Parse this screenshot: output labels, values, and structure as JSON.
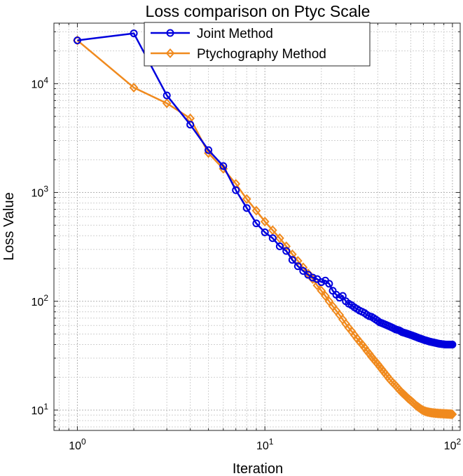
{
  "chart_data": {
    "type": "line",
    "title": "Loss comparison on Ptyc Scale",
    "xlabel": "Iteration",
    "ylabel": "Loss Value",
    "xscale": "log",
    "yscale": "log",
    "xlim": [
      0.75,
      110
    ],
    "ylim": [
      6.5,
      36000
    ],
    "grid": true,
    "minor_grid": true,
    "legend_position": "top-center",
    "x_ticks": [
      {
        "value": 1,
        "base": "10",
        "exp": "0"
      },
      {
        "value": 10,
        "base": "10",
        "exp": "1"
      },
      {
        "value": 100,
        "base": "10",
        "exp": "2"
      }
    ],
    "y_ticks": [
      {
        "value": 10,
        "base": "10",
        "exp": "1"
      },
      {
        "value": 100,
        "base": "10",
        "exp": "2"
      },
      {
        "value": 1000,
        "base": "10",
        "exp": "3"
      },
      {
        "value": 10000,
        "base": "10",
        "exp": "4"
      }
    ],
    "x": [
      1,
      2,
      3,
      4,
      5,
      6,
      7,
      8,
      9,
      10,
      11,
      12,
      13,
      14,
      15,
      16,
      17,
      18,
      19,
      20,
      21,
      22,
      23,
      24,
      25,
      26,
      27,
      28,
      29,
      30,
      31,
      32,
      33,
      34,
      35,
      36,
      37,
      38,
      39,
      40,
      41,
      42,
      43,
      44,
      45,
      46,
      47,
      48,
      49,
      50,
      51,
      52,
      53,
      54,
      55,
      56,
      57,
      58,
      59,
      60,
      61,
      62,
      63,
      64,
      65,
      66,
      67,
      68,
      69,
      70,
      71,
      72,
      73,
      74,
      75,
      76,
      77,
      78,
      79,
      80,
      81,
      82,
      83,
      84,
      85,
      86,
      87,
      88,
      89,
      90,
      91,
      92,
      93,
      94,
      95,
      96,
      97,
      98,
      99,
      100
    ],
    "series": [
      {
        "name": "Joint Method",
        "color": "#0000dd",
        "marker": "circle",
        "values": [
          25000,
          29000,
          7800,
          4200,
          2450,
          1750,
          1050,
          720,
          520,
          430,
          380,
          320,
          290,
          240,
          210,
          190,
          175,
          165,
          160,
          150,
          155,
          145,
          125,
          115,
          108,
          112,
          100,
          95,
          92,
          88,
          85,
          82,
          80,
          78,
          75,
          73,
          72,
          70,
          68,
          66,
          64,
          63,
          62,
          61,
          60,
          59,
          58,
          57,
          56,
          55,
          54.5,
          54,
          53,
          52,
          51.5,
          51,
          50.5,
          50,
          49.5,
          49,
          48.5,
          48,
          47.5,
          47,
          46.5,
          46,
          45.6,
          45.2,
          44.8,
          44.4,
          44,
          43.7,
          43.4,
          43.1,
          42.8,
          42.5,
          42.3,
          42.1,
          41.9,
          41.7,
          41.5,
          41.3,
          41.1,
          40.9,
          40.7,
          40.6,
          40.5,
          40.4,
          40.3,
          40.2,
          40.1,
          40.05,
          40,
          40,
          40,
          40,
          40,
          40,
          40,
          40
        ]
      },
      {
        "name": "Ptychography Method",
        "color": "#f08a1e",
        "marker": "diamond",
        "values": [
          25000,
          9200,
          6600,
          4800,
          2300,
          1650,
          1200,
          870,
          680,
          540,
          450,
          380,
          320,
          270,
          235,
          205,
          180,
          160,
          140,
          125,
          112,
          100,
          90,
          82,
          75,
          68,
          62,
          57,
          53,
          49,
          45.5,
          42.5,
          40,
          37.5,
          35,
          33,
          31,
          29.3,
          27.8,
          26.4,
          25,
          23.7,
          22.5,
          21.4,
          20.4,
          19.4,
          18.6,
          17.9,
          17.3,
          16.7,
          16,
          15.4,
          14.9,
          14.4,
          14,
          13.6,
          13.2,
          12.8,
          12.5,
          12.2,
          11.9,
          11.6,
          11.3,
          11,
          10.8,
          10.6,
          10.4,
          10.2,
          10.05,
          9.9,
          9.8,
          9.72,
          9.65,
          9.6,
          9.55,
          9.5,
          9.47,
          9.44,
          9.41,
          9.39,
          9.37,
          9.35,
          9.33,
          9.31,
          9.3,
          9.29,
          9.28,
          9.27,
          9.26,
          9.25,
          9.24,
          9.23,
          9.22,
          9.21,
          9.2,
          9.19,
          9.18,
          9.17,
          9.16,
          9.15
        ]
      }
    ]
  }
}
